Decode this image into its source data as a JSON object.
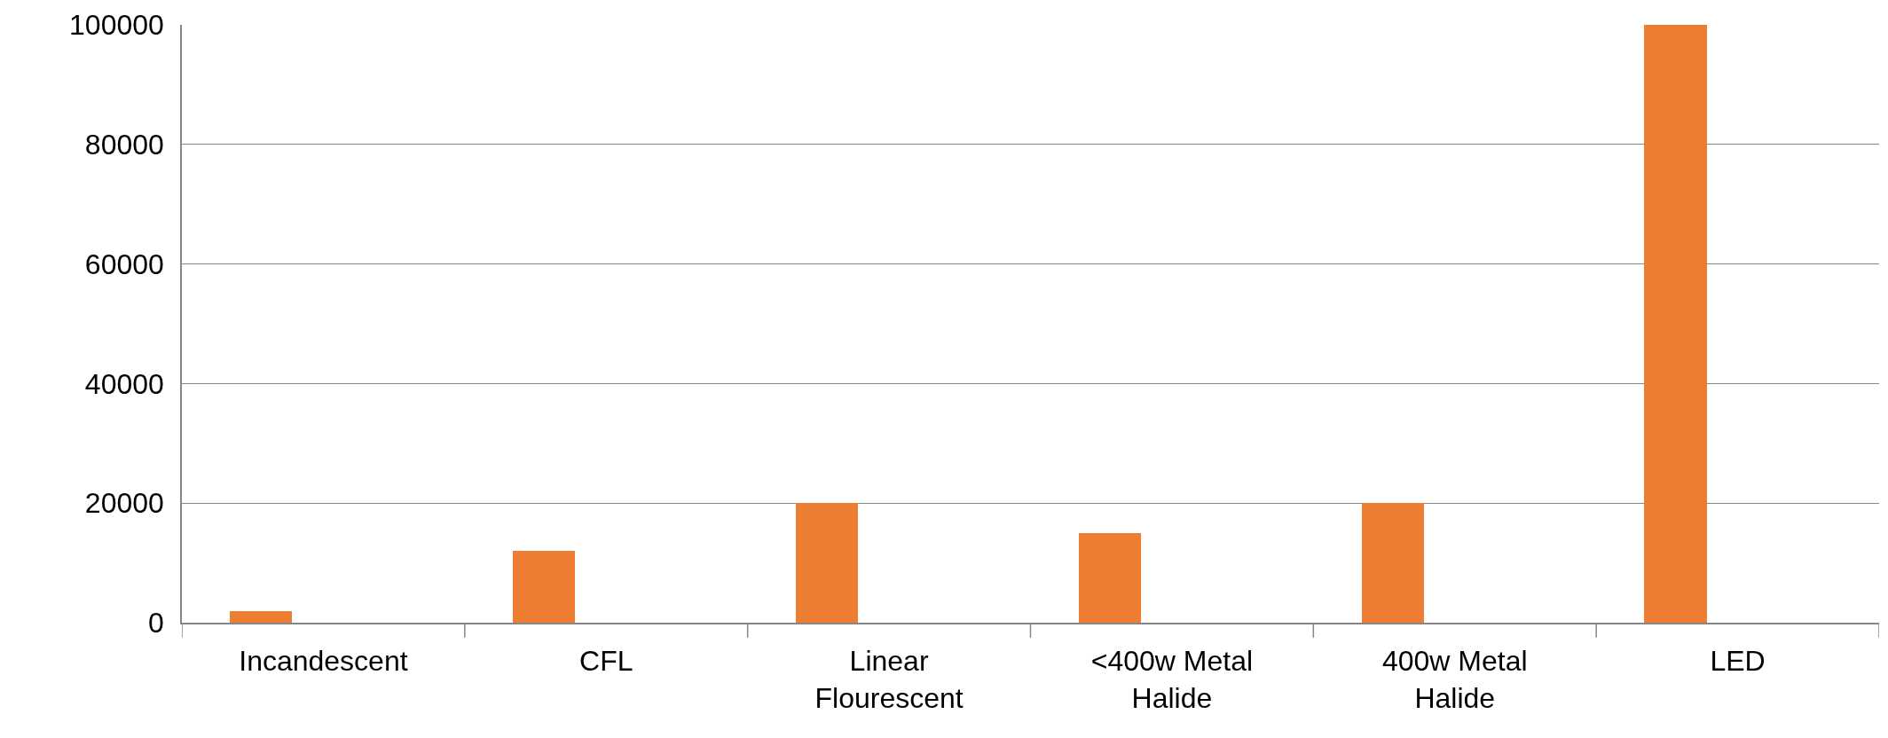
{
  "chart_data": {
    "type": "bar",
    "categories": [
      "Incandescent",
      "CFL",
      "Linear Flourescent",
      "<400w Metal Halide",
      "400w Metal Halide",
      "LED"
    ],
    "values": [
      2000,
      12000,
      20000,
      15000,
      20000,
      100000
    ],
    "color": "#ed7d31",
    "ylim": [
      0,
      100000
    ],
    "yticks": [
      0,
      20000,
      40000,
      60000,
      80000,
      100000
    ],
    "grid": "y"
  }
}
